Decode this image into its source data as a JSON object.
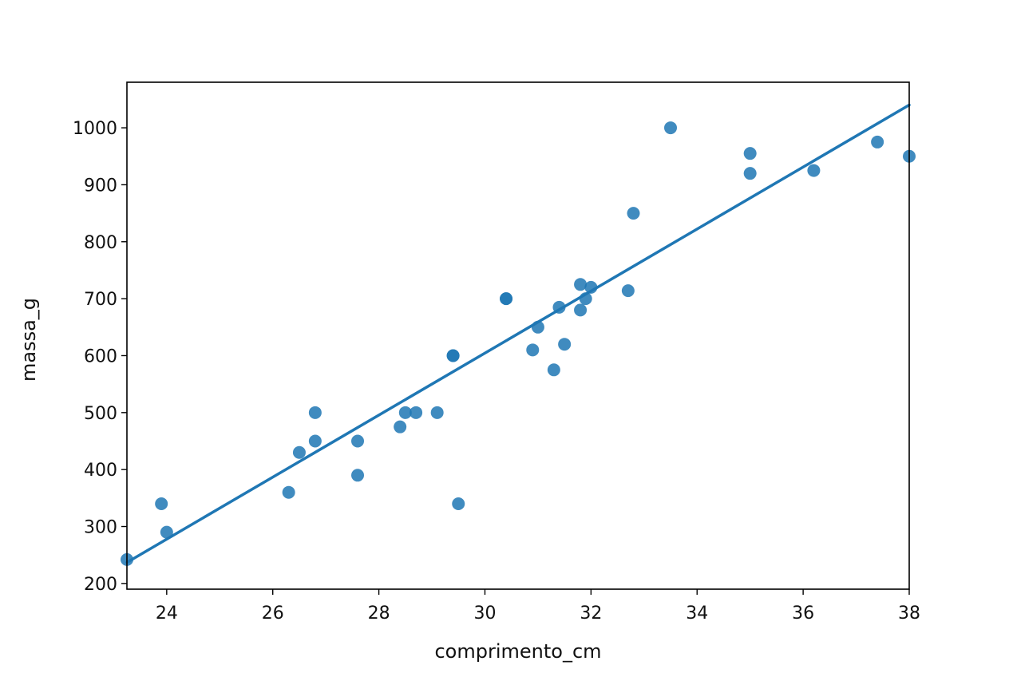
{
  "chart_data": {
    "type": "scatter",
    "title": "",
    "xlabel": "comprimento_cm",
    "ylabel": "massa_g",
    "xlim": [
      23.25,
      38
    ],
    "ylim": [
      190,
      1080
    ],
    "xticks": [
      24,
      26,
      28,
      30,
      32,
      34,
      36,
      38
    ],
    "yticks": [
      200,
      300,
      400,
      500,
      600,
      700,
      800,
      900,
      1000
    ],
    "grid": false,
    "legend": "none",
    "colors": {
      "points": "#1f77b4",
      "line": "#1f77b4",
      "axes": "#000000"
    },
    "series": [
      {
        "kind": "points",
        "points": [
          [
            23.25,
            242
          ],
          [
            23.9,
            340
          ],
          [
            24.0,
            290
          ],
          [
            26.3,
            360
          ],
          [
            26.5,
            430
          ],
          [
            26.8,
            500
          ],
          [
            26.8,
            450
          ],
          [
            27.6,
            450
          ],
          [
            27.6,
            390
          ],
          [
            28.4,
            475
          ],
          [
            28.5,
            500
          ],
          [
            28.7,
            500
          ],
          [
            29.1,
            500
          ],
          [
            29.4,
            600
          ],
          [
            29.4,
            600
          ],
          [
            29.5,
            340
          ],
          [
            30.4,
            700
          ],
          [
            30.4,
            700
          ],
          [
            30.9,
            610
          ],
          [
            31.0,
            650
          ],
          [
            31.3,
            575
          ],
          [
            31.4,
            685
          ],
          [
            31.5,
            620
          ],
          [
            31.8,
            680
          ],
          [
            31.8,
            725
          ],
          [
            31.9,
            700
          ],
          [
            32.0,
            720
          ],
          [
            32.7,
            714
          ],
          [
            32.8,
            850
          ],
          [
            33.5,
            1000
          ],
          [
            35.0,
            920
          ],
          [
            35.0,
            955
          ],
          [
            36.2,
            925
          ],
          [
            37.4,
            975
          ],
          [
            38.0,
            950
          ]
        ]
      },
      {
        "kind": "regression-line",
        "points": [
          [
            23.25,
            237
          ],
          [
            38.0,
            1040
          ]
        ]
      }
    ]
  }
}
